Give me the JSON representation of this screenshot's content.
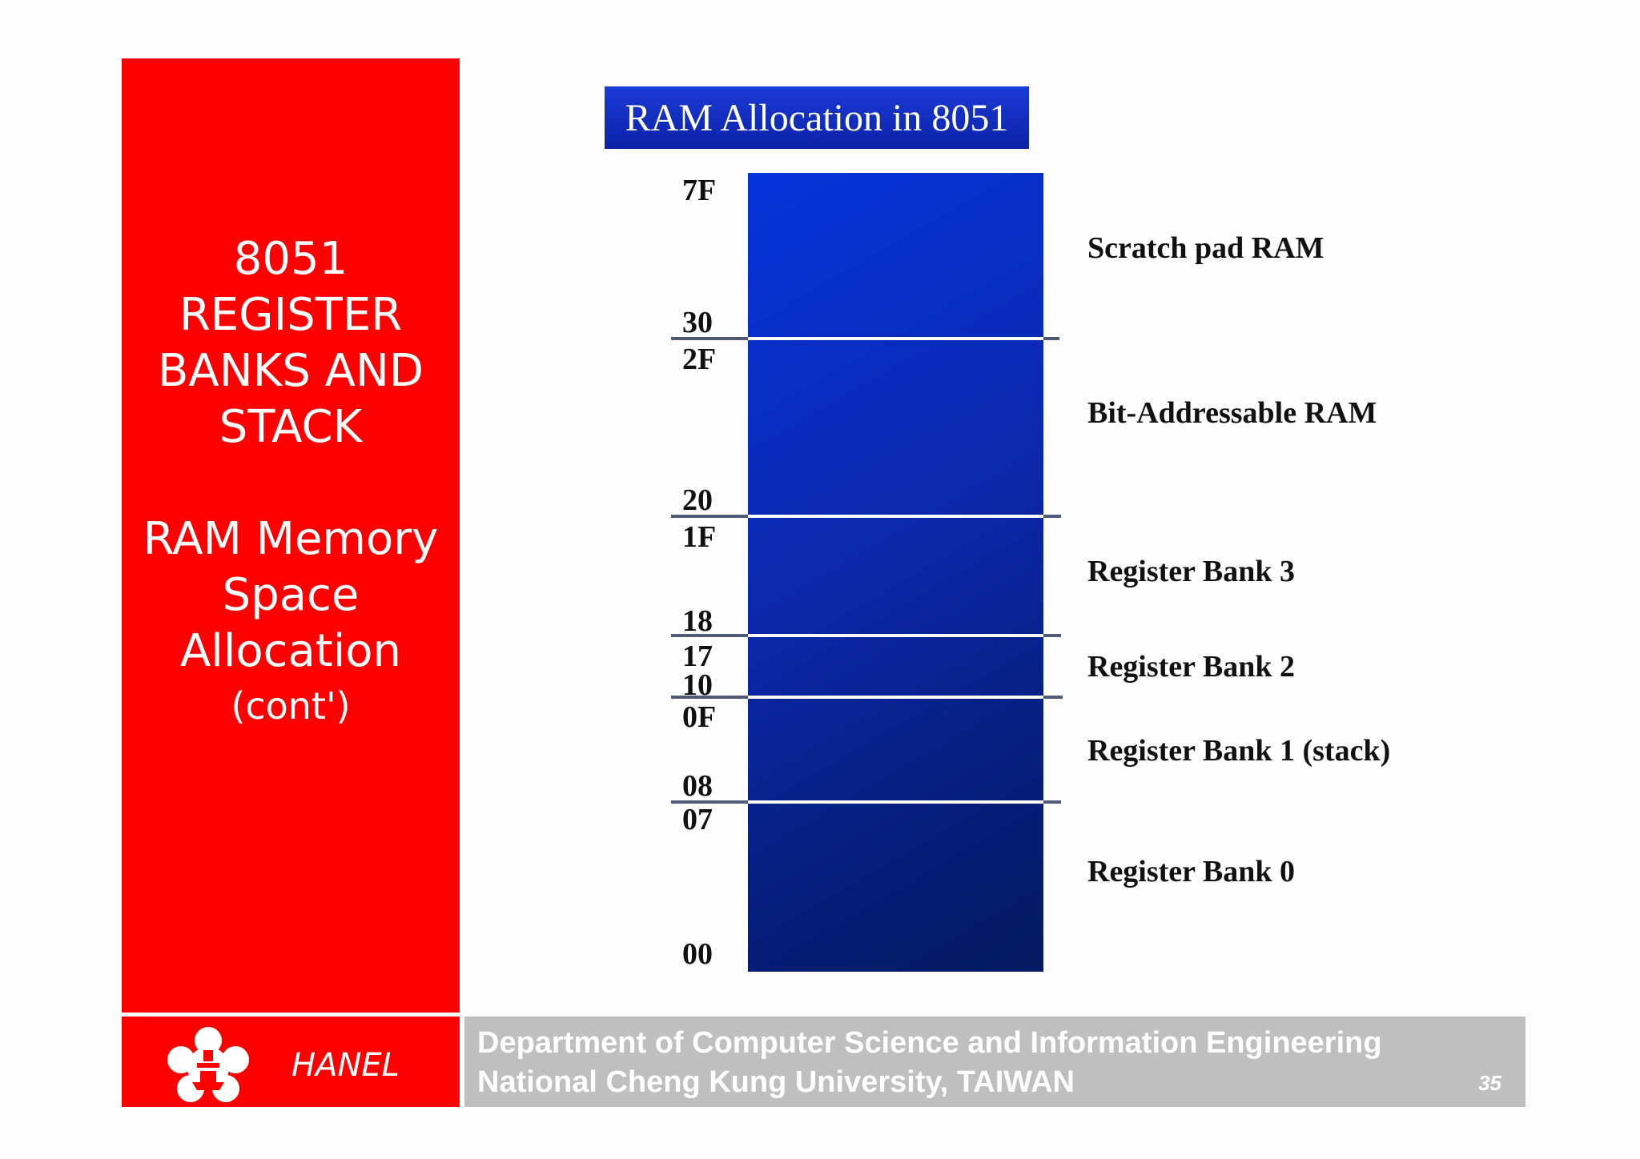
{
  "sidebar": {
    "title_lines": [
      "8051",
      "REGISTER",
      "BANKS AND",
      "STACK"
    ],
    "subtitle_lines": [
      "RAM Memory",
      "Space",
      "Allocation"
    ],
    "subtitle_note": "(cont')"
  },
  "diagram": {
    "title": "RAM Allocation in 8051",
    "addresses": {
      "a7F": "7F",
      "a30": "30",
      "a2F": "2F",
      "a20": "20",
      "a1F": "1F",
      "a18": "18",
      "a17": "17",
      "a10": "10",
      "a0F": "0F",
      "a08": "08",
      "a07": "07",
      "a00": "00"
    },
    "regions": {
      "scratch": "Scratch pad RAM",
      "bit": "Bit-Addressable RAM",
      "bank3": "Register Bank 3",
      "bank2": "Register Bank 2",
      "bank1": "Register Bank 1 (stack)",
      "bank0": "Register Bank 0"
    },
    "colors": {
      "block": "#0b29ad",
      "panel": "#ff0000",
      "footer": "#bfbfbf"
    }
  },
  "footer": {
    "author": "HANEL",
    "line1": "Department of Computer Science and Information Engineering",
    "line2": "National Cheng Kung University, TAIWAN",
    "page": "35",
    "logo_icon": "ncku-emblem-icon"
  }
}
